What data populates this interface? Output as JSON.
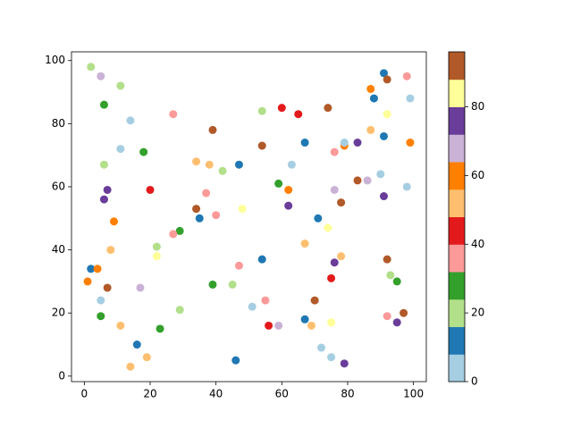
{
  "chart_data": {
    "type": "scatter",
    "x": [
      2,
      5,
      11,
      6,
      14,
      11,
      6,
      18,
      27,
      39,
      34,
      38,
      42,
      47,
      7,
      6,
      20,
      9,
      34,
      35,
      37,
      40,
      48,
      29,
      27,
      22,
      22,
      8,
      2,
      4,
      1,
      7,
      17,
      5,
      5,
      11,
      23,
      16,
      19,
      14,
      29,
      39,
      45,
      47,
      46,
      54,
      54,
      60,
      65,
      74,
      67,
      63,
      59,
      62,
      62,
      54,
      51,
      55,
      56,
      59,
      67,
      69,
      70,
      67,
      71,
      74,
      75,
      76,
      78,
      75,
      72,
      75,
      79,
      76,
      79,
      79,
      83,
      76,
      78,
      83,
      86,
      87,
      88,
      91,
      92,
      87,
      91,
      92,
      98,
      99,
      99,
      90,
      98,
      91,
      92,
      93,
      95,
      92,
      97,
      95
    ],
    "y": [
      98,
      95,
      92,
      86,
      81,
      72,
      67,
      71,
      83,
      78,
      68,
      67,
      65,
      67,
      59,
      56,
      59,
      49,
      53,
      50,
      58,
      51,
      53,
      46,
      45,
      41,
      38,
      40,
      34,
      34,
      30,
      28,
      28,
      24,
      19,
      16,
      15,
      10,
      6,
      3,
      21,
      29,
      29,
      35,
      5,
      84,
      73,
      85,
      83,
      85,
      74,
      67,
      61,
      59,
      54,
      37,
      22,
      24,
      16,
      16,
      18,
      16,
      24,
      42,
      50,
      47,
      31,
      36,
      38,
      17,
      9,
      6,
      4,
      71,
      73,
      74,
      74,
      59,
      55,
      62,
      62,
      91,
      88,
      96,
      94,
      78,
      76,
      83,
      95,
      88,
      74,
      64,
      60,
      57,
      37,
      32,
      30,
      19,
      20,
      17
    ],
    "c": [
      20,
      68,
      20,
      28,
      4,
      4,
      20,
      28,
      36,
      92,
      52,
      52,
      20,
      12,
      76,
      76,
      44,
      60,
      92,
      12,
      36,
      36,
      84,
      28,
      36,
      20,
      84,
      52,
      12,
      60,
      60,
      92,
      68,
      4,
      28,
      52,
      28,
      12,
      52,
      52,
      20,
      28,
      20,
      36,
      12,
      20,
      92,
      44,
      44,
      92,
      12,
      4,
      28,
      60,
      76,
      12,
      4,
      36,
      44,
      68,
      12,
      52,
      92,
      52,
      12,
      84,
      44,
      76,
      52,
      84,
      4,
      4,
      76,
      36,
      60,
      4,
      76,
      68,
      92,
      92,
      68,
      60,
      12,
      12,
      92,
      52,
      12,
      84,
      36,
      4,
      60,
      4,
      4,
      76,
      92,
      20,
      28,
      36,
      92,
      76
    ],
    "colormap": [
      "#a6cee3",
      "#1f78b4",
      "#b2df8a",
      "#33a02c",
      "#fb9a99",
      "#e31a1c",
      "#fdbf6f",
      "#ff7f00",
      "#cab2d6",
      "#6a3d9a",
      "#ffff99",
      "#b15928"
    ],
    "clim": [
      0,
      96
    ],
    "colorbar_ticks": [
      0,
      20,
      40,
      60,
      80
    ],
    "xlim": [
      -3.9,
      103.9
    ],
    "ylim": [
      -1.75,
      102.75
    ],
    "xticks": [
      0,
      20,
      40,
      60,
      80,
      100
    ],
    "yticks": [
      0,
      20,
      40,
      60,
      80,
      100
    ]
  }
}
